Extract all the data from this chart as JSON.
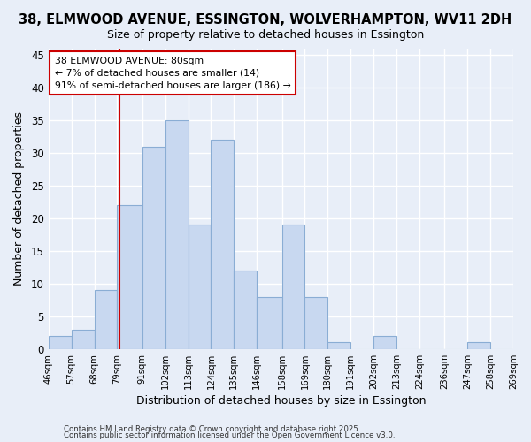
{
  "title": "38, ELMWOOD AVENUE, ESSINGTON, WOLVERHAMPTON, WV11 2DH",
  "subtitle": "Size of property relative to detached houses in Essington",
  "xlabel": "Distribution of detached houses by size in Essington",
  "ylabel": "Number of detached properties",
  "bin_edges": [
    46,
    57,
    68,
    79,
    91,
    102,
    113,
    124,
    135,
    146,
    158,
    169,
    180,
    191,
    202,
    213,
    224,
    236,
    247,
    258,
    269
  ],
  "bin_counts": [
    2,
    3,
    9,
    22,
    31,
    35,
    19,
    32,
    12,
    8,
    19,
    8,
    1,
    0,
    2,
    0,
    0,
    0,
    1,
    0
  ],
  "bar_color": "#c8d8f0",
  "bar_edgecolor": "#8aadd4",
  "vline_x": 80,
  "vline_color": "#cc0000",
  "annotation_line1": "38 ELMWOOD AVENUE: 80sqm",
  "annotation_line2": "← 7% of detached houses are smaller (14)",
  "annotation_line3": "91% of semi-detached houses are larger (186) →",
  "annotation_box_edgecolor": "#cc0000",
  "annotation_box_facecolor": "white",
  "ylim": [
    0,
    46
  ],
  "yticks": [
    0,
    5,
    10,
    15,
    20,
    25,
    30,
    35,
    40,
    45
  ],
  "tick_labels": [
    "46sqm",
    "57sqm",
    "68sqm",
    "79sqm",
    "91sqm",
    "102sqm",
    "113sqm",
    "124sqm",
    "135sqm",
    "146sqm",
    "158sqm",
    "169sqm",
    "180sqm",
    "191sqm",
    "202sqm",
    "213sqm",
    "224sqm",
    "236sqm",
    "247sqm",
    "258sqm",
    "269sqm"
  ],
  "footer1": "Contains HM Land Registry data © Crown copyright and database right 2025.",
  "footer2": "Contains public sector information licensed under the Open Government Licence v3.0.",
  "background_color": "#e8eef8",
  "grid_color": "white",
  "title_fontsize": 10.5,
  "subtitle_fontsize": 9
}
